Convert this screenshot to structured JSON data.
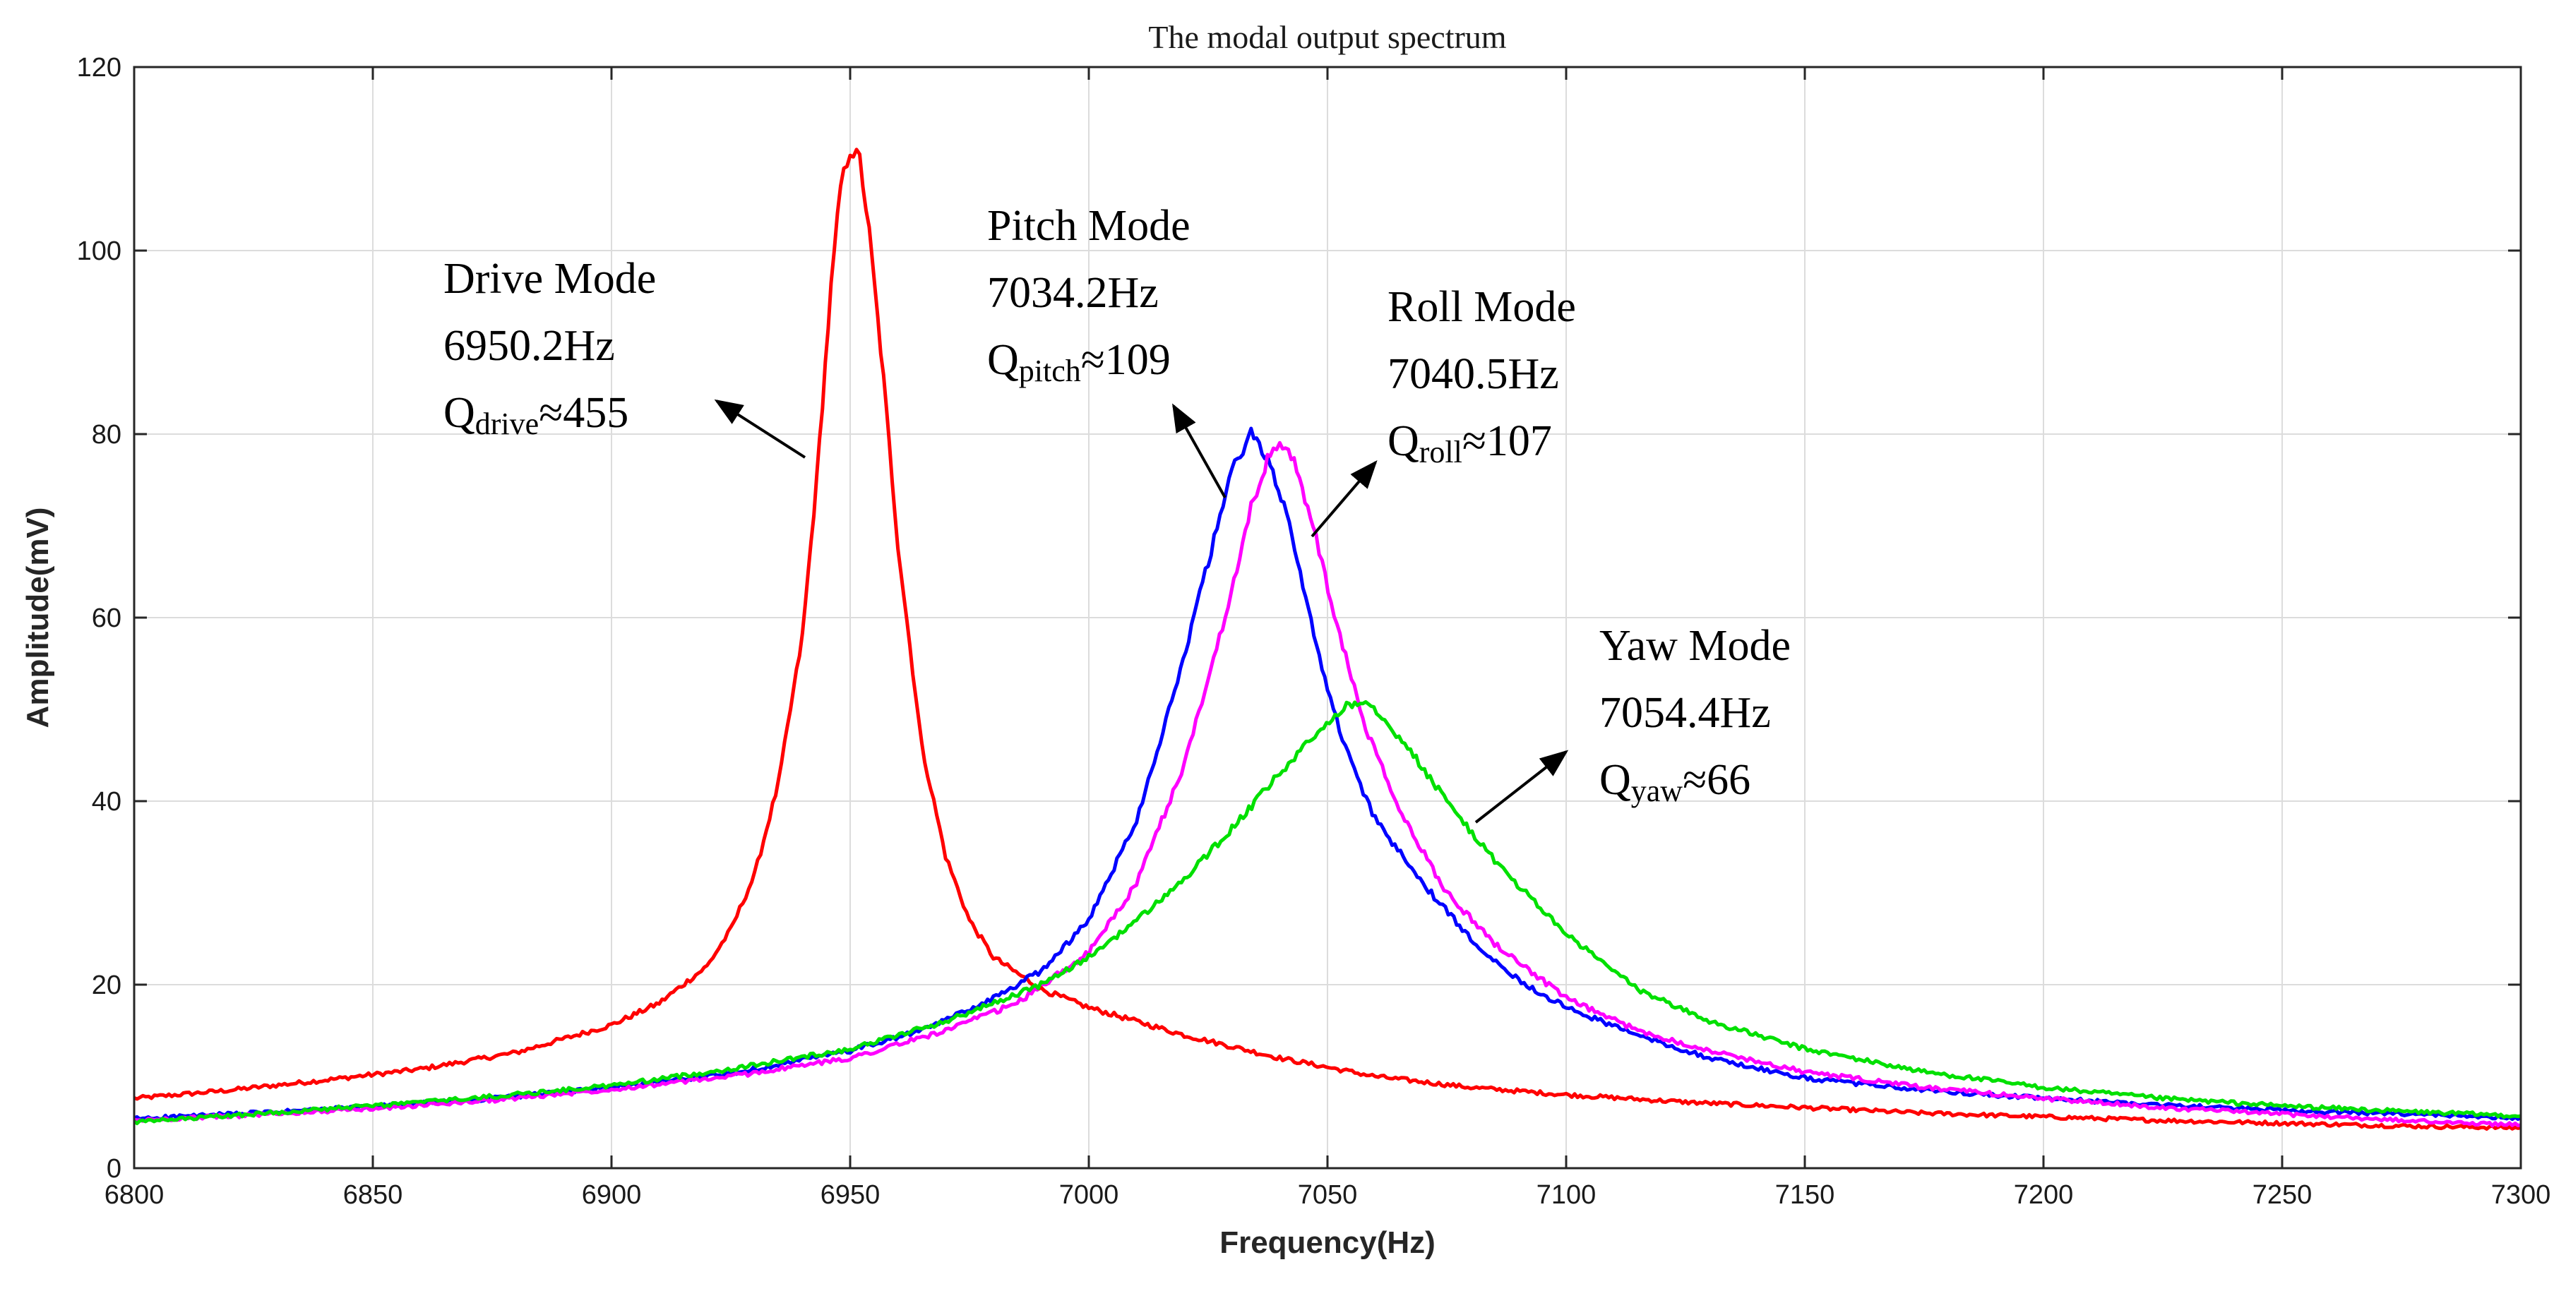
{
  "chart_data": {
    "type": "line",
    "title": "The modal output spectrum",
    "xlabel": "Frequency(Hz)",
    "ylabel": "Amplitude(mV)",
    "xlim": [
      6800,
      7300
    ],
    "ylim": [
      0,
      120
    ],
    "xticks": [
      6800,
      6850,
      6900,
      6950,
      7000,
      7050,
      7100,
      7150,
      7200,
      7250,
      7300
    ],
    "yticks": [
      0,
      20,
      40,
      60,
      80,
      100,
      120
    ],
    "grid": true,
    "series": [
      {
        "name": "Drive Mode",
        "color": "#ff0000",
        "x": [
          6800,
          6820,
          6840,
          6860,
          6880,
          6900,
          6910,
          6920,
          6925,
          6930,
          6935,
          6940,
          6943,
          6946,
          6948,
          6950,
          6952,
          6954,
          6957,
          6960,
          6965,
          6970,
          6975,
          6980,
          6990,
          7000,
          7010,
          7020,
          7040,
          7060,
          7080,
          7100,
          7125,
          7150,
          7175,
          7200,
          7225,
          7250,
          7275,
          7300
        ],
        "y": [
          7.6,
          8.5,
          9.6,
          10.8,
          12.6,
          15.6,
          18.0,
          22.0,
          26.0,
          32.0,
          42.0,
          58.0,
          75.0,
          96.0,
          107.0,
          111.0,
          110.0,
          102.0,
          86.0,
          68.0,
          46.0,
          34.0,
          27.0,
          23.0,
          19.5,
          17.5,
          16.0,
          14.5,
          12.0,
          10.0,
          8.8,
          8.0,
          7.2,
          6.6,
          6.0,
          5.6,
          5.2,
          4.9,
          4.6,
          4.4
        ]
      },
      {
        "name": "Pitch Mode",
        "color": "#0000ff",
        "x": [
          6800,
          6825,
          6850,
          6875,
          6900,
          6925,
          6950,
          6965,
          6980,
          6990,
          7000,
          7010,
          7018,
          7025,
          7030,
          7034,
          7038,
          7042,
          7046,
          7050,
          7055,
          7060,
          7070,
          7080,
          7090,
          7100,
          7115,
          7130,
          7150,
          7175,
          7200,
          7225,
          7250,
          7275,
          7300
        ],
        "y": [
          5.4,
          6.0,
          6.7,
          7.6,
          8.8,
          10.3,
          12.8,
          15.0,
          18.5,
          21.5,
          27.0,
          38.0,
          52.0,
          66.0,
          76.0,
          80.0,
          77.0,
          70.0,
          61.0,
          52.0,
          44.0,
          38.0,
          31.0,
          25.0,
          20.5,
          17.5,
          14.5,
          12.0,
          9.8,
          8.5,
          7.6,
          6.9,
          6.3,
          5.9,
          5.5
        ]
      },
      {
        "name": "Roll Mode",
        "color": "#ff00ff",
        "x": [
          6800,
          6825,
          6850,
          6875,
          6900,
          6925,
          6950,
          6970,
          6985,
          7000,
          7010,
          7020,
          7028,
          7034,
          7038,
          7040,
          7043,
          7047,
          7052,
          7058,
          7065,
          7075,
          7085,
          7100,
          7115,
          7130,
          7150,
          7175,
          7200,
          7225,
          7250,
          7275,
          7300
        ],
        "y": [
          5.2,
          5.8,
          6.5,
          7.4,
          8.6,
          10.0,
          12.0,
          15.0,
          18.0,
          23.5,
          31.0,
          44.0,
          59.0,
          72.0,
          78.0,
          79.0,
          77.0,
          70.0,
          59.0,
          48.0,
          39.0,
          30.0,
          24.5,
          18.5,
          15.0,
          12.8,
          10.5,
          8.8,
          7.6,
          6.6,
          5.9,
          5.2,
          4.7
        ]
      },
      {
        "name": "Yaw Mode",
        "color": "#00e000",
        "x": [
          6800,
          6825,
          6850,
          6875,
          6900,
          6925,
          6950,
          6970,
          6990,
          7000,
          7010,
          7020,
          7030,
          7040,
          7048,
          7054,
          7058,
          7062,
          7068,
          7075,
          7085,
          7100,
          7115,
          7130,
          7150,
          7175,
          7200,
          7225,
          7250,
          7275,
          7300
        ],
        "y": [
          5.0,
          5.9,
          6.8,
          7.8,
          9.0,
          10.8,
          13.0,
          16.0,
          20.0,
          23.0,
          27.0,
          31.5,
          37.0,
          43.0,
          47.5,
          50.5,
          51.0,
          49.0,
          45.0,
          40.0,
          33.5,
          25.5,
          19.5,
          16.0,
          13.0,
          10.5,
          8.8,
          7.6,
          6.8,
          6.2,
          5.7
        ]
      }
    ],
    "annotations": [
      {
        "name": "drive",
        "lines": [
          "Drive Mode",
          "6950.2Hz"
        ],
        "q_prefix": "Q",
        "q_sub": "drive",
        "q_suffix": "≈455"
      },
      {
        "name": "pitch",
        "lines": [
          "Pitch Mode",
          "7034.2Hz"
        ],
        "q_prefix": "Q",
        "q_sub": "pitch",
        "q_suffix": "≈109"
      },
      {
        "name": "roll",
        "lines": [
          "Roll Mode",
          "7040.5Hz"
        ],
        "q_prefix": "Q",
        "q_sub": "roll",
        "q_suffix": "≈107"
      },
      {
        "name": "yaw",
        "lines": [
          "Yaw Mode",
          "7054.4Hz"
        ],
        "q_prefix": "Q",
        "q_sub": "yaw",
        "q_suffix": "≈66"
      }
    ]
  }
}
